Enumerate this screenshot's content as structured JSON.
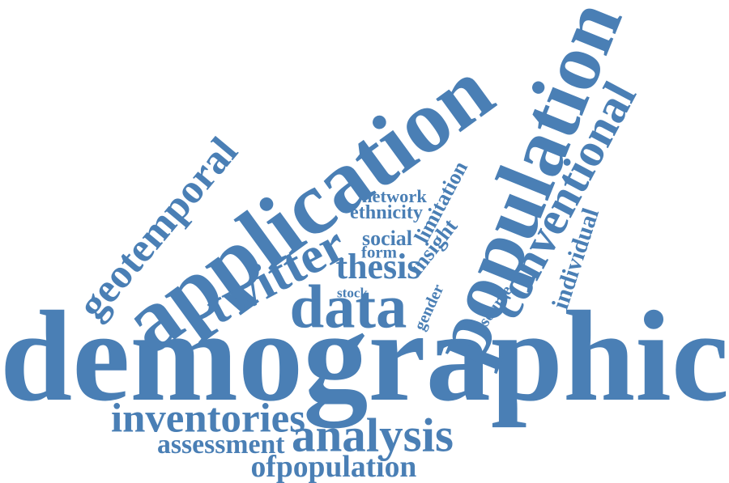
{
  "color": "#4a7fb5",
  "words": [
    {
      "text": "demographic"
    },
    {
      "text": "application"
    },
    {
      "text": "population"
    },
    {
      "text": "data"
    },
    {
      "text": "twitter"
    },
    {
      "text": "analysis"
    },
    {
      "text": "inventories"
    },
    {
      "text": "conventional"
    },
    {
      "text": "geotemporal"
    },
    {
      "text": "thesis"
    },
    {
      "text": "ofpopulation"
    },
    {
      "text": "assessment"
    },
    {
      "text": "individual"
    },
    {
      "text": "network"
    },
    {
      "text": "ethnicity"
    },
    {
      "text": "social"
    },
    {
      "text": "form"
    },
    {
      "text": "insight"
    },
    {
      "text": "limitation"
    },
    {
      "text": "gender"
    },
    {
      "text": "source"
    },
    {
      "text": "stock"
    }
  ]
}
